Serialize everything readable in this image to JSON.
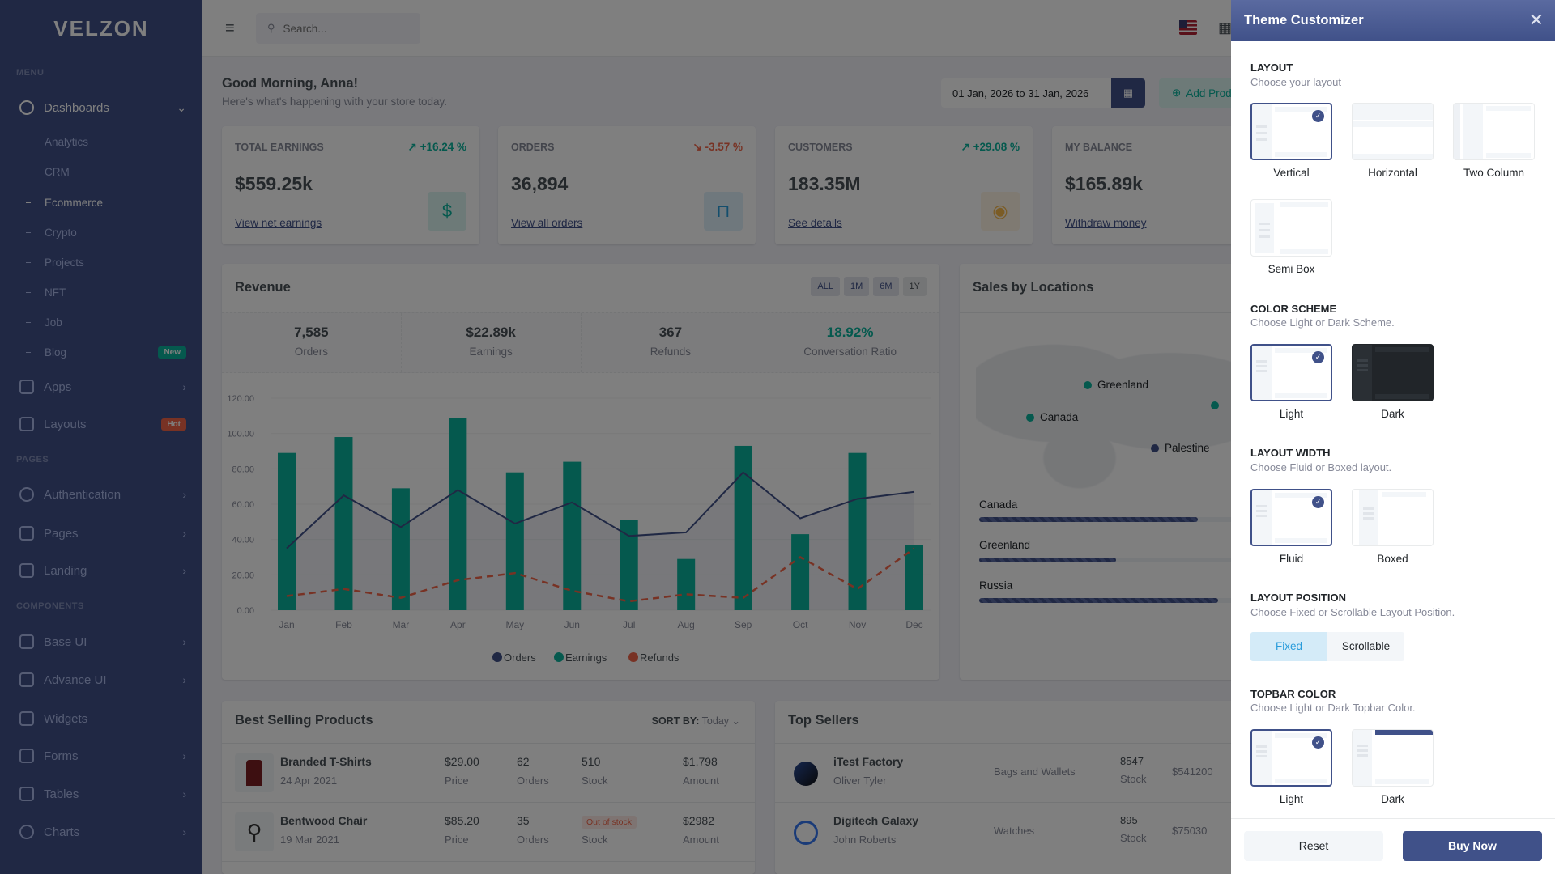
{
  "brand": "velzon",
  "sidebar": {
    "menu_title": "MENU",
    "pages_title": "PAGES",
    "components_title": "COMPONENTS",
    "dashboards": "Dashboards",
    "sub": [
      "Analytics",
      "CRM",
      "Ecommerce",
      "Crypto",
      "Projects",
      "NFT",
      "Job",
      "Blog"
    ],
    "blog_badge": "New",
    "apps": "Apps",
    "layouts": "Layouts",
    "layouts_badge": "Hot",
    "authentication": "Authentication",
    "pages": "Pages",
    "landing": "Landing",
    "base_ui": "Base UI",
    "advance_ui": "Advance UI",
    "widgets": "Widgets",
    "forms": "Forms",
    "tables": "Tables",
    "charts": "Charts"
  },
  "topbar": {
    "search_placeholder": "Search..."
  },
  "greeting": {
    "title": "Good Morning, Anna!",
    "subtitle": "Here's what's happening with your store today.",
    "date_range": "01 Jan, 2026 to 31 Jan, 2026",
    "add_product": "Add Product"
  },
  "stats": [
    {
      "label": "TOTAL EARNINGS",
      "change": "+16.24 %",
      "value": "$559.25k",
      "link": "View net earnings"
    },
    {
      "label": "ORDERS",
      "change": "-3.57 %",
      "value": "36,894",
      "link": "View all orders"
    },
    {
      "label": "CUSTOMERS",
      "change": "+29.08 %",
      "value": "183.35M",
      "link": "See details"
    },
    {
      "label": "MY BALANCE",
      "value": "$165.89k",
      "link": "Withdraw money"
    }
  ],
  "revenue": {
    "title": "Revenue",
    "ranges": [
      "ALL",
      "1M",
      "6M",
      "1Y"
    ],
    "summary": [
      {
        "value": "7,585",
        "label": "Orders"
      },
      {
        "value": "$22.89k",
        "label": "Earnings"
      },
      {
        "value": "367",
        "label": "Refunds"
      },
      {
        "value": "18.92%",
        "label": "Conversation Ratio"
      }
    ]
  },
  "chart_data": {
    "type": "bar",
    "categories": [
      "Jan",
      "Feb",
      "Mar",
      "Apr",
      "May",
      "Jun",
      "Jul",
      "Aug",
      "Sep",
      "Oct",
      "Nov",
      "Dec"
    ],
    "series": [
      {
        "name": "Orders",
        "type": "area-line",
        "color": "#405189",
        "values": [
          35,
          65,
          47,
          68,
          49,
          61,
          42,
          44,
          78,
          52,
          63,
          67
        ]
      },
      {
        "name": "Earnings",
        "type": "bar",
        "color": "#0ab39c",
        "values": [
          89,
          98,
          69,
          109,
          78,
          84,
          51,
          29,
          93,
          43,
          89,
          37
        ]
      },
      {
        "name": "Refunds",
        "type": "dashed-line",
        "color": "#f06548",
        "values": [
          8,
          12,
          7,
          17,
          21,
          11,
          5,
          9,
          7,
          30,
          12,
          35
        ]
      }
    ],
    "yticks": [
      "0.00",
      "20.00",
      "40.00",
      "60.00",
      "80.00",
      "100.00",
      "120.00"
    ],
    "ylim": [
      0,
      120
    ],
    "legend": "bottom"
  },
  "locations": {
    "title": "Sales by Locations",
    "markers": [
      "Greenland",
      "Canada",
      "Palestine"
    ],
    "bars": [
      {
        "name": "Canada",
        "pct": 75
      },
      {
        "name": "Greenland",
        "pct": 47
      },
      {
        "name": "Russia",
        "pct": 82
      }
    ]
  },
  "best_selling": {
    "title": "Best Selling Products",
    "sort_label": "SORT BY:",
    "sort_value": "Today",
    "rows": [
      {
        "name": "Branded T-Shirts",
        "date": "24 Apr 2021",
        "price": "$29.00",
        "orders": "62",
        "stock": "510",
        "amount": "$1,798"
      },
      {
        "name": "Bentwood Chair",
        "date": "19 Mar 2021",
        "price": "$85.20",
        "orders": "35",
        "stock": "Out of stock",
        "amount": "$2982"
      }
    ],
    "col_labels": {
      "price": "Price",
      "orders": "Orders",
      "stock": "Stock",
      "amount": "Amount"
    }
  },
  "top_sellers": {
    "title": "Top Sellers",
    "rows": [
      {
        "name": "iTest Factory",
        "owner": "Oliver Tyler",
        "category": "Bags and Wallets",
        "stock": "8547",
        "amount": "$541200"
      },
      {
        "name": "Digitech Galaxy",
        "owner": "John Roberts",
        "category": "Watches",
        "stock": "895",
        "amount": "$75030"
      }
    ],
    "stock_label": "Stock"
  },
  "customizer": {
    "title": "Theme Customizer",
    "layout": {
      "title": "LAYOUT",
      "subtitle": "Choose your layout",
      "options": [
        "Vertical",
        "Horizontal",
        "Two Column",
        "Semi Box"
      ]
    },
    "color_scheme": {
      "title": "COLOR SCHEME",
      "subtitle": "Choose Light or Dark Scheme.",
      "options": [
        "Light",
        "Dark"
      ]
    },
    "layout_width": {
      "title": "LAYOUT WIDTH",
      "subtitle": "Choose Fluid or Boxed layout.",
      "options": [
        "Fluid",
        "Boxed"
      ]
    },
    "layout_position": {
      "title": "LAYOUT POSITION",
      "subtitle": "Choose Fixed or Scrollable Layout Position.",
      "options": [
        "Fixed",
        "Scrollable"
      ]
    },
    "topbar_color": {
      "title": "TOPBAR COLOR",
      "subtitle": "Choose Light or Dark Topbar Color.",
      "options": [
        "Light",
        "Dark"
      ]
    },
    "reset": "Reset",
    "buy": "Buy Now"
  }
}
